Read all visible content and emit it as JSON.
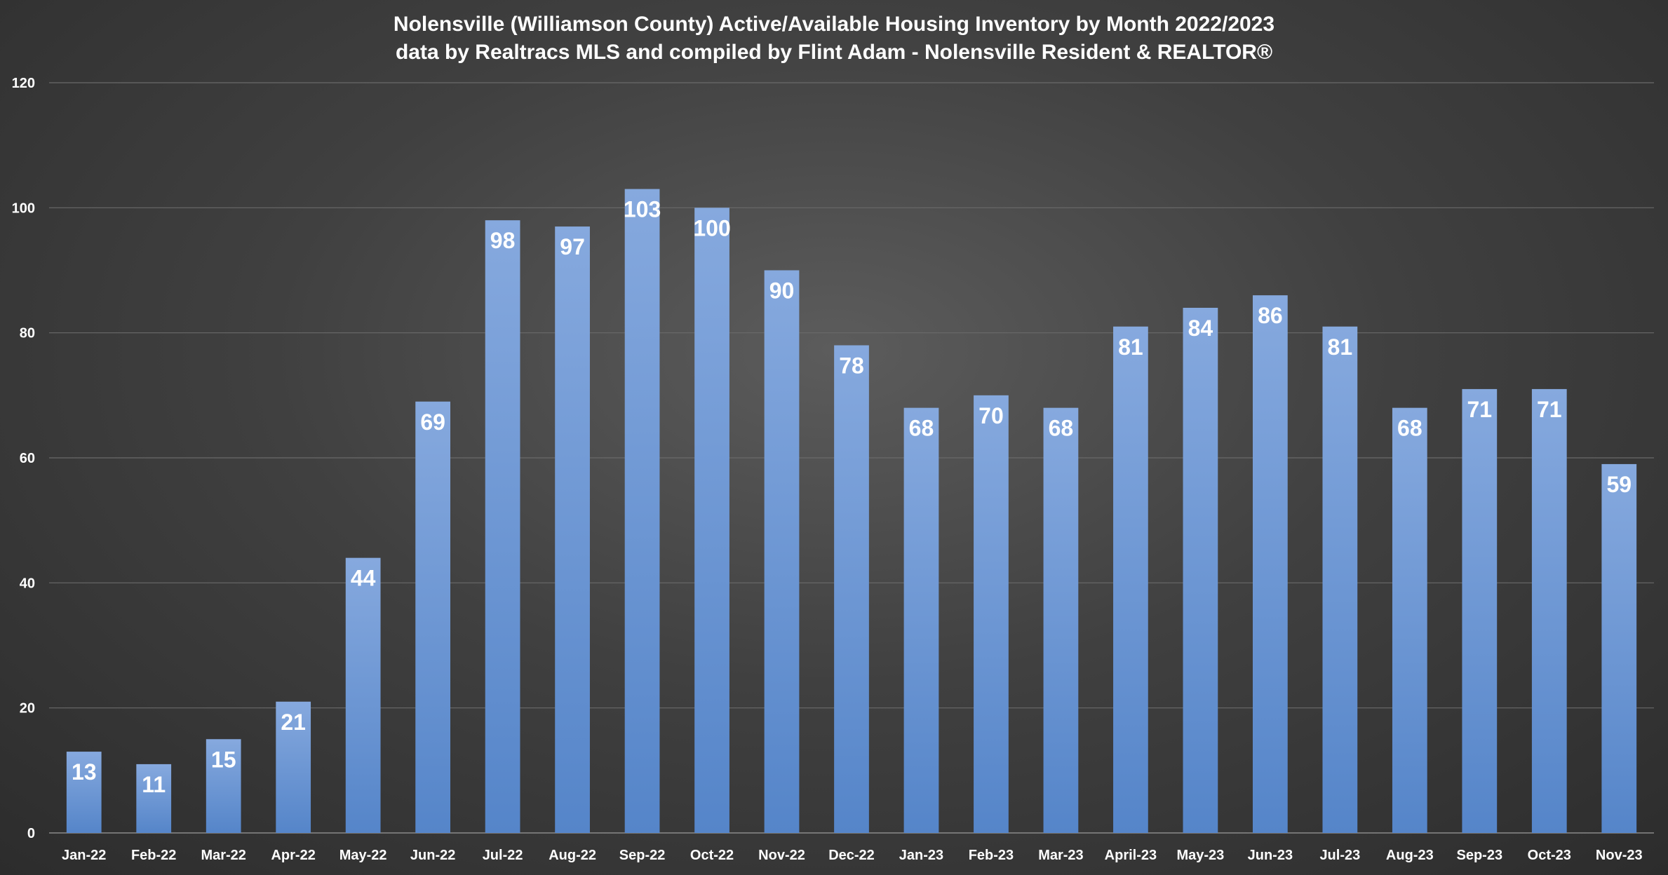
{
  "chart_data": {
    "type": "bar",
    "title": "Nolensville (Williamson County) Active/Available Housing Inventory by Month 2022/2023",
    "subtitle": "data by Realtracs MLS and compiled by Flint Adam - Nolensville Resident & REALTOR®",
    "xlabel": "",
    "ylabel": "",
    "categories": [
      "Jan-22",
      "Feb-22",
      "Mar-22",
      "Apr-22",
      "May-22",
      "Jun-22",
      "Jul-22",
      "Aug-22",
      "Sep-22",
      "Oct-22",
      "Nov-22",
      "Dec-22",
      "Jan-23",
      "Feb-23",
      "Mar-23",
      "April-23",
      "May-23",
      "Jun-23",
      "Jul-23",
      "Aug-23",
      "Sep-23",
      "Oct-23",
      "Nov-23"
    ],
    "values": [
      13,
      11,
      15,
      21,
      44,
      69,
      98,
      97,
      103,
      100,
      90,
      78,
      68,
      70,
      68,
      81,
      84,
      86,
      81,
      68,
      71,
      71,
      59
    ],
    "ylim": [
      0,
      120
    ],
    "yticks": [
      0,
      20,
      40,
      60,
      80,
      100,
      120
    ],
    "grid": true,
    "legend": "none",
    "data_labels": "inside-end",
    "colors": {
      "bar_top": "#86a9de",
      "bar_bottom": "#5585c9",
      "background_center": "#5c5c5c",
      "background_edge": "#2b2b2b",
      "text": "#ffffff",
      "grid": "#6a6a6a"
    }
  }
}
